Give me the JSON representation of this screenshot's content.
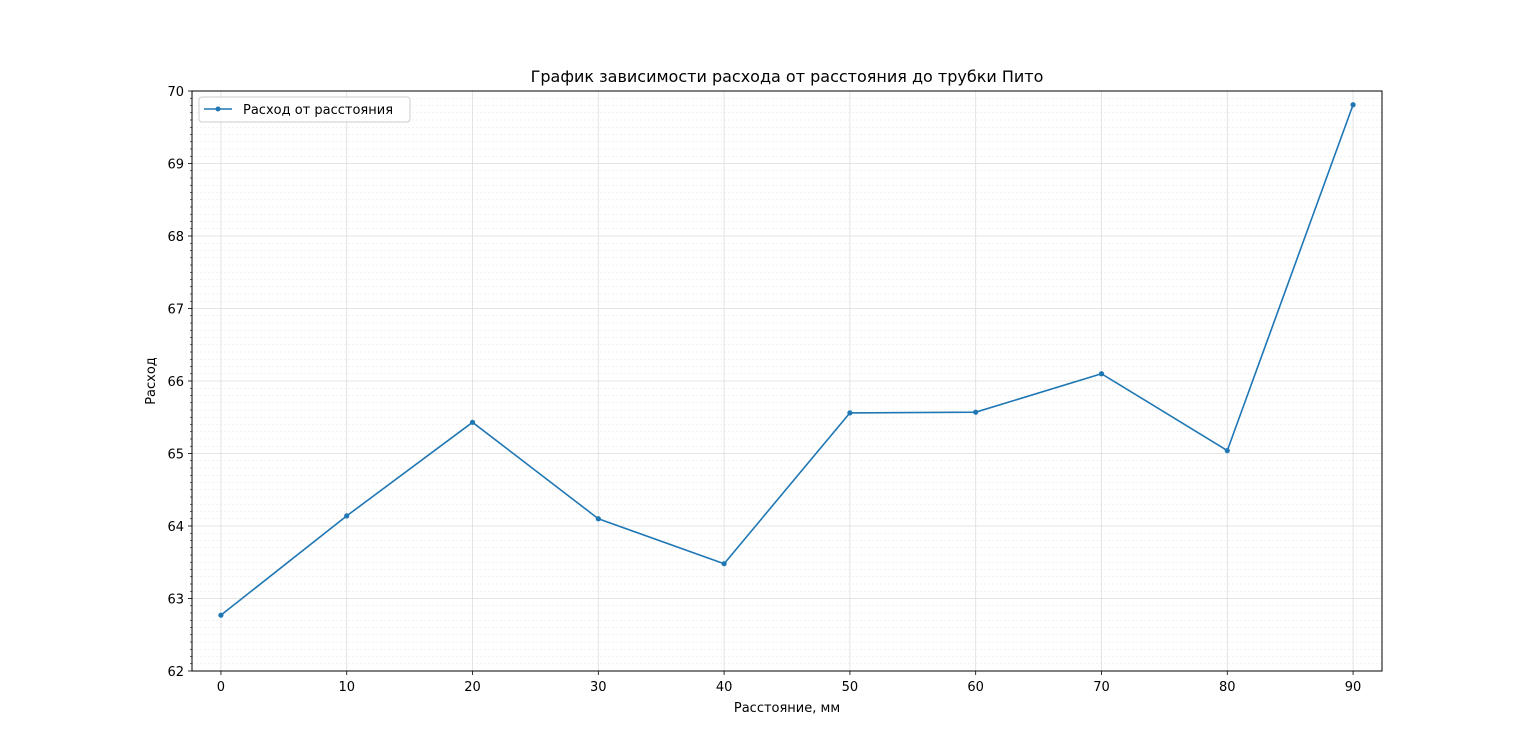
{
  "chart_data": {
    "type": "line",
    "title": "График зависимости расхода от расстояния до трубки Пито",
    "xlabel": "Расстояние, мм",
    "ylabel": "Расход",
    "xlim": [
      -2.3,
      92.3
    ],
    "ylim": [
      62,
      70
    ],
    "xticks": [
      0,
      10,
      20,
      30,
      40,
      50,
      60,
      70,
      80,
      90
    ],
    "yticks": [
      62,
      63,
      64,
      65,
      66,
      67,
      68,
      69,
      70
    ],
    "y_minor_step": 0.1,
    "grid": true,
    "legend_position": "upper-left",
    "series": [
      {
        "name": "Расход от расстояния",
        "color": "#1f77b4",
        "marker": "dot",
        "x": [
          0,
          10,
          20,
          30,
          40,
          50,
          60,
          70,
          80,
          90
        ],
        "y": [
          62.77,
          64.14,
          65.43,
          64.1,
          63.48,
          65.56,
          65.57,
          66.1,
          65.04,
          69.81
        ]
      }
    ]
  }
}
